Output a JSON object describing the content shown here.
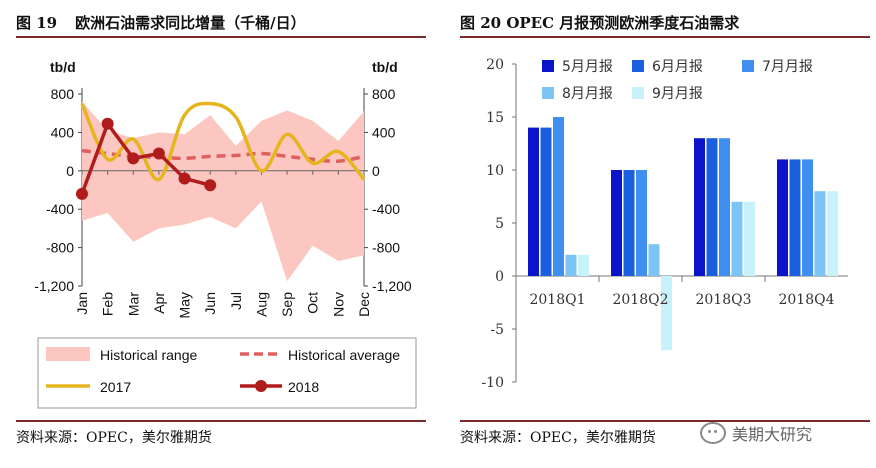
{
  "left": {
    "title_num": "图 19",
    "title_text": "欧洲石油需求同比增量（千桶/日）",
    "source": "资料来源：OPEC，美尔雅期货",
    "chart_data": {
      "type": "line",
      "categories": [
        "Jan",
        "Feb",
        "Mar",
        "Apr",
        "May",
        "Jun",
        "Jul",
        "Aug",
        "Sep",
        "Oct",
        "Nov",
        "Dec"
      ],
      "y_unit_left": "tb/d",
      "y_unit_right": "tb/d",
      "ylim": [
        -1200,
        800
      ],
      "yticks": [
        800,
        400,
        0,
        -400,
        -800,
        -1200
      ],
      "ytick_labels": [
        "800",
        "400",
        "0",
        "-400",
        "-800",
        "-1,200"
      ],
      "series": [
        {
          "name": "Historical range",
          "kind": "band",
          "color": "#fbc7c0",
          "upper": [
            720,
            420,
            340,
            400,
            380,
            580,
            260,
            520,
            630,
            520,
            310,
            620
          ],
          "lower": [
            -520,
            -440,
            -740,
            -600,
            -560,
            -480,
            -600,
            -320,
            -1150,
            -780,
            -940,
            -880
          ]
        },
        {
          "name": "Historical average",
          "kind": "dashed",
          "color": "#e06060",
          "values": [
            210,
            180,
            150,
            140,
            130,
            150,
            160,
            180,
            150,
            120,
            100,
            150
          ]
        },
        {
          "name": "2017",
          "kind": "line",
          "color": "#e5b51e",
          "values": [
            700,
            120,
            330,
            -90,
            580,
            700,
            560,
            0,
            380,
            80,
            200,
            -90
          ]
        },
        {
          "name": "2018",
          "kind": "line-marker",
          "color": "#b01c1c",
          "values": [
            -240,
            490,
            130,
            180,
            -80,
            -150,
            null,
            null,
            null,
            null,
            null,
            null
          ]
        }
      ]
    }
  },
  "right": {
    "title_text": "图 20 OPEC 月报预测欧洲季度石油需求",
    "source": "资料来源：OPEC，美尔雅期货",
    "chart_data": {
      "type": "bar",
      "categories": [
        "2018Q1",
        "2018Q2",
        "2018Q3",
        "2018Q4"
      ],
      "ylim": [
        -10,
        20
      ],
      "yticks": [
        20,
        15,
        10,
        5,
        0,
        -5,
        -10
      ],
      "series": [
        {
          "name": "5月月报",
          "color": "#0a14c8",
          "values": [
            14,
            10,
            13,
            11
          ]
        },
        {
          "name": "6月月报",
          "color": "#1a5fe0",
          "values": [
            14,
            10,
            13,
            11
          ]
        },
        {
          "name": "7月月报",
          "color": "#3f8ff0",
          "values": [
            15,
            10,
            13,
            11
          ]
        },
        {
          "name": "8月月报",
          "color": "#7cc4f5",
          "values": [
            2,
            3,
            7,
            8
          ]
        },
        {
          "name": "9月月报",
          "color": "#c8f2fb",
          "values": [
            2,
            -7,
            7,
            8
          ]
        }
      ]
    }
  },
  "watermark": "美期大研究"
}
